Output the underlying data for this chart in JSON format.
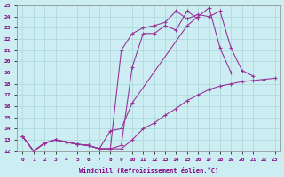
{
  "xlabel": "Windchill (Refroidissement éolien,°C)",
  "xlim": [
    -0.5,
    23.5
  ],
  "ylim": [
    12,
    25
  ],
  "xticks": [
    0,
    1,
    2,
    3,
    4,
    5,
    6,
    7,
    8,
    9,
    10,
    11,
    12,
    13,
    14,
    15,
    16,
    17,
    18,
    19,
    20,
    21,
    22,
    23
  ],
  "yticks": [
    12,
    13,
    14,
    15,
    16,
    17,
    18,
    19,
    20,
    21,
    22,
    23,
    24,
    25
  ],
  "bg_color": "#cceef2",
  "grid_color": "#a8d8dc",
  "line_color": "#993399",
  "lines": [
    {
      "x": [
        0,
        1,
        2,
        3,
        4,
        5,
        6,
        7,
        8,
        9,
        10,
        11,
        12,
        13,
        14,
        15,
        16
      ],
      "y": [
        13.3,
        12.0,
        12.7,
        13.0,
        12.8,
        12.6,
        12.5,
        12.2,
        12.2,
        12.5,
        19.5,
        22.5,
        22.5,
        23.2,
        22.8,
        24.5,
        23.8
      ]
    },
    {
      "x": [
        0,
        1,
        2,
        3,
        4,
        5,
        6,
        7,
        8,
        9,
        10,
        15,
        16,
        17,
        18,
        19
      ],
      "y": [
        13.3,
        12.0,
        12.7,
        13.0,
        12.8,
        12.6,
        12.5,
        12.2,
        13.8,
        14.0,
        16.3,
        23.2,
        24.0,
        24.8,
        21.2,
        19.0
      ]
    },
    {
      "x": [
        0,
        1,
        2,
        3,
        4,
        5,
        6,
        7,
        8,
        9,
        10,
        11,
        12,
        13,
        14,
        15,
        16,
        17,
        18,
        19,
        20,
        21
      ],
      "y": [
        13.3,
        12.0,
        12.7,
        13.0,
        12.8,
        12.6,
        12.5,
        12.2,
        12.2,
        21.0,
        22.5,
        23.0,
        23.2,
        23.5,
        24.5,
        23.8,
        24.2,
        24.0,
        24.5,
        21.2,
        19.2,
        18.7
      ]
    },
    {
      "x": [
        0,
        1,
        2,
        3,
        4,
        5,
        6,
        7,
        8,
        9,
        10,
        11,
        12,
        13,
        14,
        15,
        16,
        17,
        18,
        19,
        20,
        21,
        22,
        23
      ],
      "y": [
        13.3,
        12.0,
        12.7,
        13.0,
        12.8,
        12.6,
        12.5,
        12.2,
        12.2,
        12.2,
        13.0,
        14.0,
        14.5,
        15.2,
        15.8,
        16.5,
        17.0,
        17.5,
        17.8,
        18.0,
        18.2,
        18.3,
        18.4,
        18.5
      ]
    }
  ]
}
